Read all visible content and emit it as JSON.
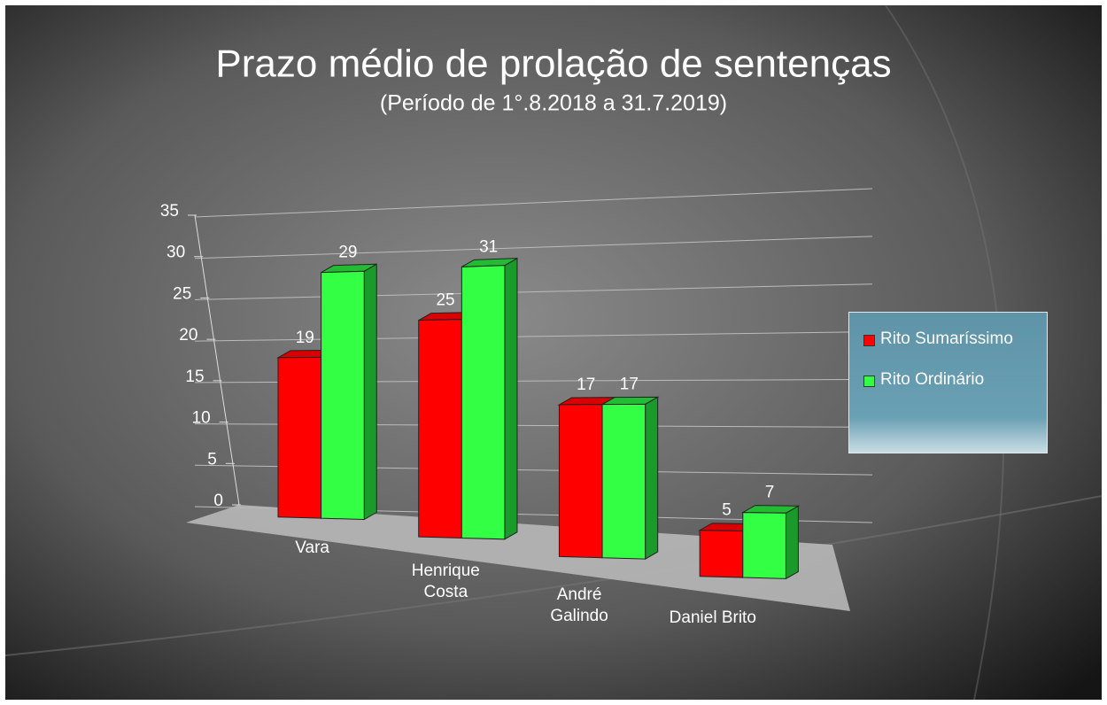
{
  "chart_data": {
    "type": "bar3d",
    "title": "Prazo médio de prolação de sentenças",
    "subtitle": "(Período de 1°.8.2018  a  31.7.2019)",
    "categories": [
      "Vara",
      "Henrique Costa",
      "André Galindo",
      "Daniel Brito"
    ],
    "series": [
      {
        "name": "Rito Sumaríssimo",
        "color": "#ff0000",
        "values": [
          19,
          25,
          17,
          5
        ]
      },
      {
        "name": "Rito Ordinário",
        "color": "#33ff44",
        "values": [
          29,
          31,
          17,
          7
        ]
      }
    ],
    "ylim": [
      0,
      35
    ],
    "yticks": [
      0,
      5,
      10,
      15,
      20,
      25,
      30,
      35
    ],
    "grid": true,
    "legend": "right"
  }
}
